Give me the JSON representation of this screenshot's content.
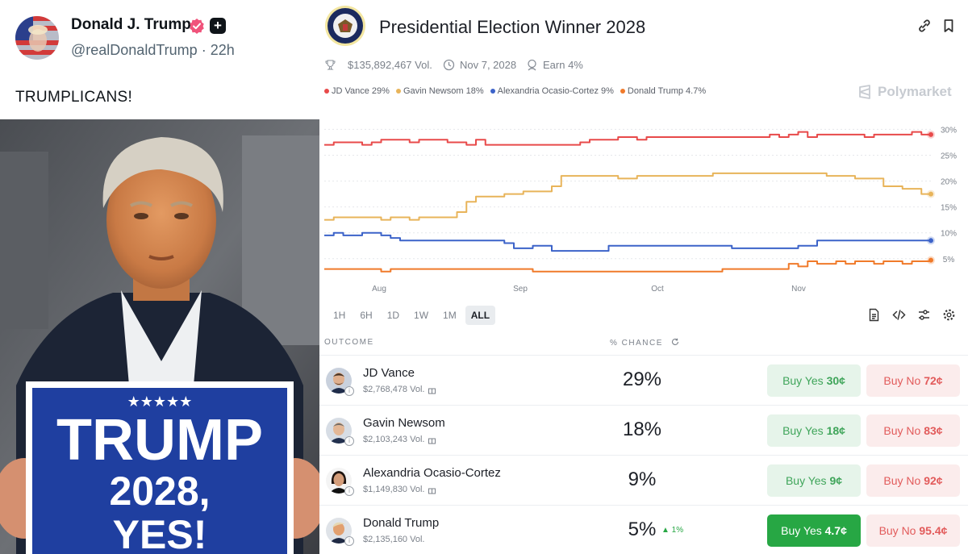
{
  "post": {
    "author_name": "Donald J. Trump",
    "handle": "@realDonaldTrump",
    "separator": "·",
    "time_ago": "22h",
    "text": "TRUMPLICANS!",
    "sign": {
      "stars": "★★★★★",
      "line1": "TRUMP",
      "line2": "2028,",
      "line3": "YES!"
    }
  },
  "market": {
    "title": "Presidential Election Winner 2028",
    "volume": "$135,892,467 Vol.",
    "date": "Nov 7, 2028",
    "earn": "Earn 4%",
    "brand": "Polymarket",
    "legend": [
      {
        "label": "JD Vance 29%",
        "color": "#e84a4a"
      },
      {
        "label": "Gavin Newsom 18%",
        "color": "#e8b45a"
      },
      {
        "label": "Alexandria Ocasio-Cortez 9%",
        "color": "#3c63c9"
      },
      {
        "label": "Donald Trump 4.7%",
        "color": "#f07a2a"
      }
    ],
    "ranges": [
      "1H",
      "6H",
      "1D",
      "1W",
      "1M",
      "ALL"
    ],
    "active_range": "ALL",
    "col_outcome": "OUTCOME",
    "col_chance": "% CHANCE",
    "outcomes": [
      {
        "name": "JD Vance",
        "volume": "$2,768,478 Vol.",
        "chance": "29%",
        "delta": "",
        "yes_label": "Buy Yes",
        "yes_price": "30¢",
        "no_label": "Buy No",
        "no_price": "72¢"
      },
      {
        "name": "Gavin Newsom",
        "volume": "$2,103,243 Vol.",
        "chance": "18%",
        "delta": "",
        "yes_label": "Buy Yes",
        "yes_price": "18¢",
        "no_label": "Buy No",
        "no_price": "83¢"
      },
      {
        "name": "Alexandria Ocasio-Cortez",
        "volume": "$1,149,830 Vol.",
        "chance": "9%",
        "delta": "",
        "yes_label": "Buy Yes",
        "yes_price": "9¢",
        "no_label": "Buy No",
        "no_price": "92¢"
      },
      {
        "name": "Donald Trump",
        "volume": "$2,135,160 Vol.",
        "chance": "5%",
        "delta": "▲ 1%",
        "yes_label": "Buy Yes",
        "yes_price": "4.7¢",
        "no_label": "Buy No",
        "no_price": "95.4¢"
      }
    ]
  },
  "chart_data": {
    "type": "line",
    "x_ticks": [
      "Aug",
      "Sep",
      "Oct",
      "Nov"
    ],
    "y_ticks": [
      "30%",
      "25%",
      "20%",
      "15%",
      "10%",
      "5%"
    ],
    "ylim": [
      2,
      31
    ],
    "grid": true,
    "series": [
      {
        "name": "JD Vance",
        "color": "#e84a4a",
        "values": [
          27,
          27.5,
          27.5,
          27.5,
          27,
          27.5,
          28,
          28,
          28,
          27.5,
          28,
          28,
          28,
          27.5,
          27.5,
          27,
          28,
          27,
          27,
          27,
          27,
          27,
          27,
          27,
          27,
          27,
          27,
          27.5,
          28,
          28,
          28,
          28.5,
          28.5,
          28,
          28.5,
          28.5,
          28.5,
          28.5,
          28.5,
          28.5,
          28.5,
          28.5,
          28.5,
          28.5,
          28.5,
          28.5,
          28.5,
          29,
          28.5,
          29,
          29.5,
          28.5,
          29,
          29,
          29,
          29,
          29,
          28.5,
          29,
          29,
          29,
          29,
          29.5,
          29,
          29
        ]
      },
      {
        "name": "Gavin Newsom",
        "color": "#e8b45a",
        "values": [
          12.5,
          13,
          13,
          13,
          13,
          13,
          12.5,
          13,
          13,
          12.5,
          13,
          13,
          13,
          13,
          14,
          16,
          17,
          17,
          17,
          17.5,
          17.5,
          18,
          18,
          18,
          19,
          21,
          21,
          21,
          21,
          21,
          21,
          20.5,
          20.5,
          21,
          21,
          21,
          21,
          21,
          21,
          21,
          21,
          21.5,
          21.5,
          21.5,
          21.5,
          21.5,
          21.5,
          21.5,
          21.5,
          21.5,
          21.5,
          21.5,
          21.5,
          21,
          21,
          21,
          20.5,
          20.5,
          20.5,
          19,
          19,
          18.5,
          18.5,
          17.5,
          17.5
        ]
      },
      {
        "name": "Alexandria Ocasio-Cortez",
        "color": "#3c63c9",
        "values": [
          9.5,
          10,
          9.5,
          9.5,
          10,
          10,
          9.5,
          9,
          8.5,
          8.5,
          8.5,
          8.5,
          8.5,
          8.5,
          8.5,
          8.5,
          8.5,
          8.5,
          8.5,
          8,
          7,
          7,
          7.5,
          7.5,
          6.5,
          6.5,
          6.5,
          6.5,
          6.5,
          6.5,
          7.5,
          7.5,
          7.5,
          7.5,
          7.5,
          7.5,
          7.5,
          7.5,
          7.5,
          7.5,
          7.5,
          7.5,
          7.5,
          7,
          7,
          7,
          7,
          7,
          7,
          7,
          7.5,
          7.5,
          8.5,
          8.5,
          8.5,
          8.5,
          8.5,
          8.5,
          8.5,
          8.5,
          8.5,
          8.5,
          8.5,
          8.5,
          8.5
        ]
      },
      {
        "name": "Donald Trump",
        "color": "#f07a2a",
        "values": [
          3,
          3,
          3,
          3,
          3,
          3,
          2.5,
          3,
          3,
          3,
          3,
          3,
          3,
          3,
          3,
          3,
          3,
          3,
          3,
          3,
          3,
          3,
          2.5,
          2.5,
          2.5,
          2.5,
          2.5,
          2.5,
          2.5,
          2.5,
          2.5,
          2.5,
          2.5,
          2.5,
          2.5,
          2.5,
          2.5,
          2.5,
          2.5,
          2.5,
          2.5,
          2.5,
          3,
          3,
          3,
          3,
          3,
          3,
          3,
          4,
          3.5,
          4.5,
          4,
          4,
          4.5,
          4,
          4.5,
          4.5,
          4,
          4.5,
          4.5,
          4,
          4.5,
          4.5,
          4.7
        ]
      }
    ]
  }
}
